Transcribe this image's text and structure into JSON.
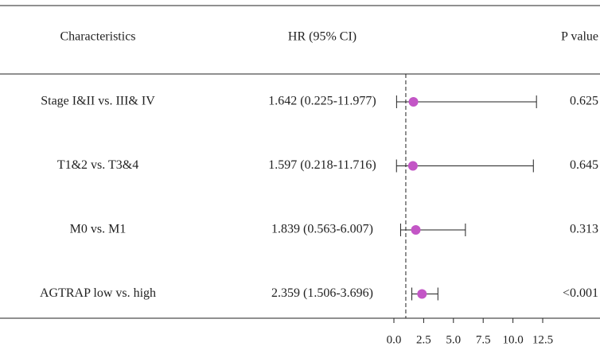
{
  "table": {
    "headers": [
      "Characteristics",
      "HR (95% CI)",
      "P value"
    ],
    "rows": [
      [
        "Stage I&II vs. III& IV",
        "1.642 (0.225-11.977)",
        "0.625"
      ],
      [
        "T1&2 vs. T3&4",
        "1.597 (0.218-11.716)",
        "0.645"
      ],
      [
        "M0 vs. M1",
        "1.839 (0.563-6.007)",
        "0.313"
      ],
      [
        "AGTRAP low vs. high",
        "2.359 (1.506-3.696)",
        "<0.001"
      ]
    ]
  },
  "chart_data": {
    "type": "forest",
    "values": [
      1.642,
      1.597,
      1.839,
      2.359
    ],
    "lower": [
      0.225,
      0.218,
      0.563,
      1.506
    ],
    "upper": [
      11.977,
      11.716,
      6.007,
      3.696
    ],
    "reference_line": 1,
    "color": "#c356c6",
    "xlim": [
      0,
      12.5
    ],
    "xticks": [
      {
        "value": 0,
        "label": "0.0"
      },
      {
        "value": 2.5,
        "label": "2.5"
      },
      {
        "value": 5,
        "label": "5.0"
      },
      {
        "value": 7.5,
        "label": "7.5"
      },
      {
        "value": 10,
        "label": "10.0"
      },
      {
        "value": 12.5,
        "label": "12.5"
      }
    ]
  }
}
